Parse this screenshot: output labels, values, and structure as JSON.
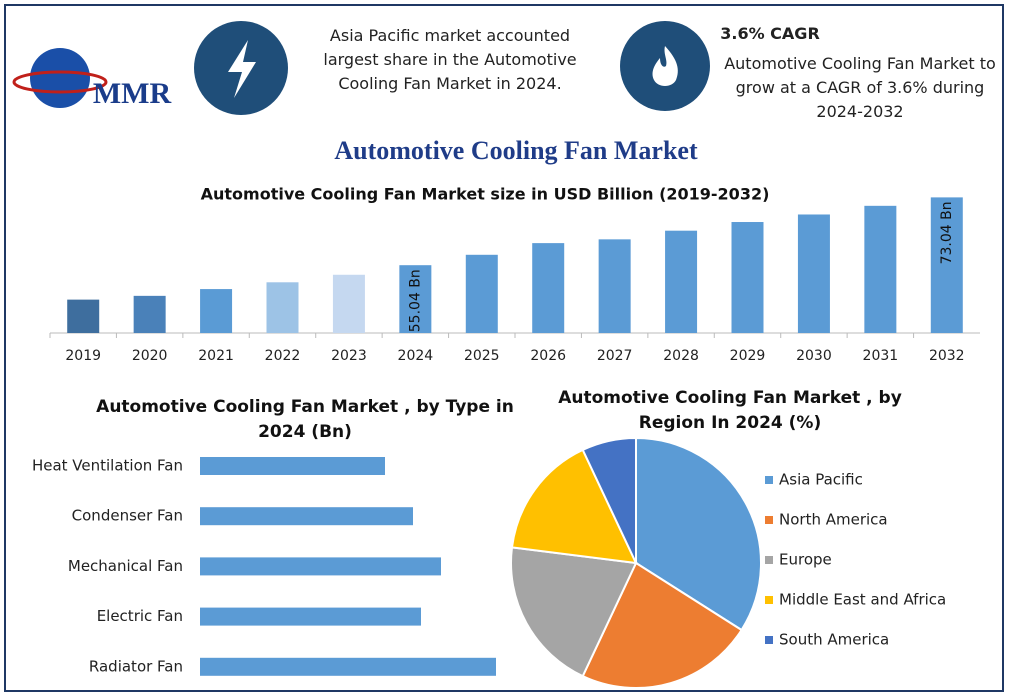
{
  "header": {
    "logo": "MMR",
    "fact1": "Asia Pacific market accounted largest share in the Automotive Cooling Fan Market in 2024.",
    "cagr_title": "3.6% CAGR",
    "fact2": "Automotive Cooling Fan Market to grow at a CAGR of 3.6% during 2024-2032"
  },
  "title": "Automotive Cooling Fan Market",
  "chart_data": [
    {
      "type": "bar",
      "title": "Automotive Cooling Fan Market size in USD Billion (2019-2032)",
      "categories": [
        "2019",
        "2020",
        "2021",
        "2022",
        "2023",
        "2024",
        "2025",
        "2026",
        "2027",
        "2028",
        "2029",
        "2030",
        "2031",
        "2032"
      ],
      "values": [
        45.9,
        46.9,
        48.7,
        50.5,
        52.5,
        55.04,
        57.8,
        60.9,
        61.9,
        64.2,
        66.5,
        68.5,
        70.8,
        73.04
      ],
      "value_labels": [
        null,
        null,
        null,
        null,
        null,
        "55.04 Bn",
        null,
        null,
        null,
        null,
        null,
        null,
        null,
        "73.04 Bn"
      ],
      "colors": [
        "#3e6e9e",
        "#4a81b9",
        "#5a9bd5",
        "#9dc3e6",
        "#c5d8f0",
        "#5b9bd5",
        "#5b9bd5",
        "#5b9bd5",
        "#5b9bd5",
        "#5b9bd5",
        "#5b9bd5",
        "#5b9bd5",
        "#5b9bd5",
        "#5b9bd5"
      ],
      "ylim": [
        37.04,
        75
      ]
    },
    {
      "type": "barh",
      "title": "Automotive Cooling Fan Market , by Type in 2024 (Bn)",
      "categories": [
        "Heat Ventilation Fan",
        "Condenser Fan",
        "Mechanical Fan",
        "Electric Fan",
        "Radiator Fan"
      ],
      "values": [
        1.85,
        2.13,
        2.41,
        2.21,
        2.96
      ],
      "color": "#5b9bd5",
      "xlim": [
        0,
        3
      ]
    },
    {
      "type": "pie",
      "title": "Automotive Cooling Fan Market , by Region In 2024 (%)",
      "categories": [
        "Asia Pacific",
        "North America",
        "Europe",
        "Middle East and Africa",
        "South America"
      ],
      "values": [
        34,
        23,
        20,
        16,
        7
      ],
      "colors": [
        "#5b9bd5",
        "#ed7d31",
        "#a5a5a5",
        "#ffc000",
        "#4472c4"
      ]
    }
  ]
}
